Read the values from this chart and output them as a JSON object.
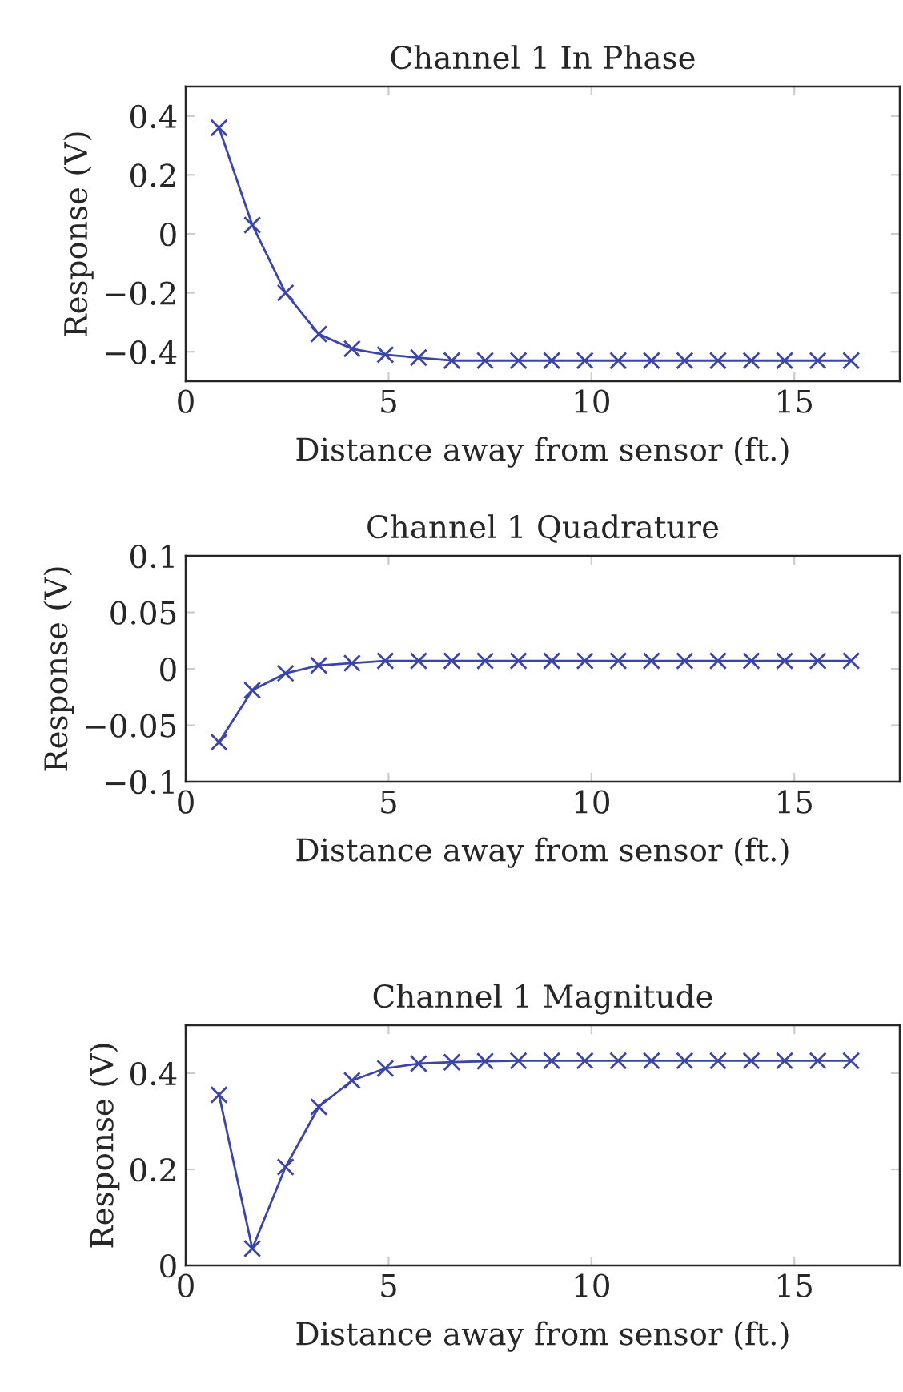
{
  "chart_data": [
    {
      "type": "line",
      "title": "Channel 1 In Phase",
      "xlabel": "Distance away from sensor (ft.)",
      "ylabel": "Response (V)",
      "marker": "cross",
      "line_style": "solid",
      "x": [
        0.82,
        1.64,
        2.46,
        3.28,
        4.1,
        4.92,
        5.74,
        6.56,
        7.38,
        8.2,
        9.02,
        9.84,
        10.66,
        11.48,
        12.3,
        13.12,
        13.94,
        14.76,
        15.58,
        16.4
      ],
      "series": [
        {
          "color": "#3b44a8",
          "values": [
            0.36,
            0.03,
            -0.2,
            -0.34,
            -0.39,
            -0.41,
            -0.42,
            -0.43,
            -0.43,
            -0.43,
            -0.43,
            -0.43,
            -0.43,
            -0.43,
            -0.43,
            -0.43,
            -0.43,
            -0.43,
            -0.43,
            -0.43
          ]
        }
      ],
      "xlim": [
        0,
        17.6
      ],
      "ylim": [
        -0.5,
        0.5
      ],
      "xticks": [
        0,
        5,
        10,
        15
      ],
      "yticks": [
        -0.4,
        -0.2,
        0,
        0.2,
        0.4
      ]
    },
    {
      "type": "line",
      "title": "Channel 1 Quadrature",
      "xlabel": "Distance away from sensor (ft.)",
      "ylabel": "Response (V)",
      "marker": "cross",
      "line_style": "solid",
      "x": [
        0.82,
        1.64,
        2.46,
        3.28,
        4.1,
        4.92,
        5.74,
        6.56,
        7.38,
        8.2,
        9.02,
        9.84,
        10.66,
        11.48,
        12.3,
        13.12,
        13.94,
        14.76,
        15.58,
        16.4
      ],
      "series": [
        {
          "color": "#3b44a8",
          "values": [
            -0.065,
            -0.019,
            -0.004,
            0.003,
            0.005,
            0.007,
            0.007,
            0.007,
            0.007,
            0.007,
            0.007,
            0.007,
            0.007,
            0.007,
            0.007,
            0.007,
            0.007,
            0.007,
            0.007,
            0.007
          ]
        }
      ],
      "xlim": [
        0,
        17.6
      ],
      "ylim": [
        -0.1,
        0.1
      ],
      "xticks": [
        0,
        5,
        10,
        15
      ],
      "yticks": [
        {
          "value": -0.1,
          "label": "−0.1"
        },
        {
          "value": -0.05,
          "label": "−0.05"
        },
        0,
        0.05,
        0.1
      ]
    },
    {
      "type": "line",
      "title": "Channel 1 Magnitude",
      "xlabel": "Distance away from sensor (ft.)",
      "ylabel": "Response (V)",
      "marker": "cross",
      "line_style": "solid",
      "x": [
        0.82,
        1.64,
        2.46,
        3.28,
        4.1,
        4.92,
        5.74,
        6.56,
        7.38,
        8.2,
        9.02,
        9.84,
        10.66,
        11.48,
        12.3,
        13.12,
        13.94,
        14.76,
        15.58,
        16.4
      ],
      "series": [
        {
          "color": "#3b44a8",
          "values": [
            0.355,
            0.035,
            0.205,
            0.33,
            0.385,
            0.41,
            0.42,
            0.423,
            0.425,
            0.426,
            0.426,
            0.426,
            0.426,
            0.426,
            0.426,
            0.426,
            0.426,
            0.426,
            0.426,
            0.426
          ]
        }
      ],
      "xlim": [
        0,
        17.6
      ],
      "ylim": [
        0,
        0.5
      ],
      "xticks": [
        0,
        5,
        10,
        15
      ],
      "yticks": [
        0,
        0.2,
        0.4
      ]
    }
  ]
}
